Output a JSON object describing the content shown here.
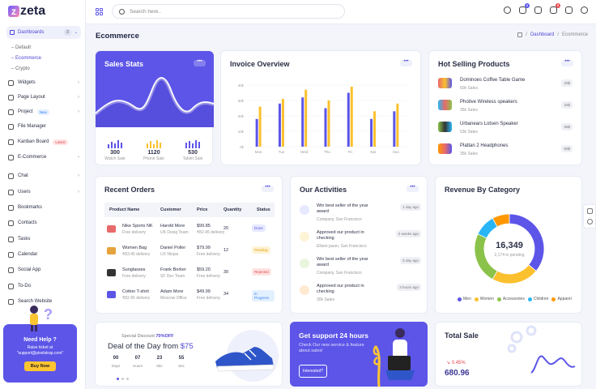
{
  "app": {
    "logo": "zeta"
  },
  "sidebar": {
    "dashboards_label": "Dashboards",
    "dashboards_count": "3",
    "sub_items": [
      "Default",
      "Ecommerce",
      "Crypto"
    ],
    "items": [
      {
        "label": "Widgets"
      },
      {
        "label": "Page Layout"
      },
      {
        "label": "Project",
        "tag": "New"
      },
      {
        "label": "File Manager"
      },
      {
        "label": "Kanban Board",
        "tag": "Latest"
      },
      {
        "label": "E-Commerce"
      },
      {
        "label": "Chat"
      },
      {
        "label": "Users"
      },
      {
        "label": "Bookmarks"
      },
      {
        "label": "Contacts"
      },
      {
        "label": "Tasks"
      },
      {
        "label": "Calendar"
      },
      {
        "label": "Social App"
      },
      {
        "label": "To-Do"
      },
      {
        "label": "Search Website"
      }
    ],
    "help": {
      "title": "Need Help ?",
      "line1": "Raise ticket at",
      "line2": "\"support@pixelstrap.com\"",
      "button": "Buy Now"
    }
  },
  "topbar": {
    "search_placeholder": "Search here..",
    "notif_counts": [
      "2",
      "5"
    ]
  },
  "page": {
    "title": "Ecommerce",
    "breadcrumb": [
      "Dashboard",
      "Ecommerce"
    ]
  },
  "sales_stats": {
    "title": "Sales Stats",
    "stats": [
      {
        "value": "300",
        "label": "Watch Sale"
      },
      {
        "value": "1120",
        "label": "Phone Sale"
      },
      {
        "value": "530",
        "label": "Tablet Sale"
      }
    ]
  },
  "chart_data": {
    "type": "bar",
    "title": "Invoice Overview",
    "categories": [
      "Mon",
      "Tue",
      "Wed",
      "Thu",
      "Fri",
      "Sat",
      "Sun"
    ],
    "yticks": [
      "0k",
      "10k",
      "20k",
      "30k",
      "40k"
    ],
    "ylim": [
      0,
      40
    ],
    "series": [
      {
        "name": "Series 1",
        "color": "#5c55e8",
        "values": [
          18,
          28,
          32,
          25,
          35,
          18,
          23
        ]
      },
      {
        "name": "Series 2",
        "color": "#fbc02d",
        "values": [
          26,
          31,
          37,
          30,
          39,
          23,
          28
        ]
      }
    ]
  },
  "hot_selling": {
    "title": "Hot Selling Products",
    "items": [
      {
        "name": "Dominoes Coffee Table Game",
        "sales": "60k Sales",
        "price": "20$"
      },
      {
        "name": "Photive Wireless speakers",
        "sales": "35k Sales",
        "price": "32$"
      },
      {
        "name": "Urbanears Lotsen Speaker",
        "sales": "53k Sales",
        "price": "56$"
      },
      {
        "name": "Plattan 2 Headphones",
        "sales": "35k Sales",
        "price": "60$"
      }
    ]
  },
  "orders": {
    "title": "Recent Orders",
    "headers": [
      "Product Name",
      "Customer",
      "Price",
      "Quantity",
      "Status"
    ],
    "rows": [
      {
        "product": "Nike Sports NK",
        "product_sub": "Free delivery",
        "customer": "Harold More",
        "customer_sub": "UK Desig Team",
        "price": "$99.85",
        "price_sub": "₹82.45 delivery",
        "qty": "20",
        "status": "Done",
        "status_bg": "#e6e9ff",
        "status_fg": "#5c55e8",
        "color": "#e86a6a"
      },
      {
        "product": "Women Bag",
        "product_sub": "₹83.45 delivery",
        "customer": "Daniel Poller",
        "customer_sub": "UX Ninjas",
        "price": "$79.99",
        "price_sub": "Free delivery",
        "qty": "12",
        "status": "Pending",
        "status_bg": "#fff3d6",
        "status_fg": "#e0a000",
        "color": "#e6a23c"
      },
      {
        "product": "Sunglasses",
        "product_sub": "Free delivery",
        "customer": "Frank Borker",
        "customer_sub": "SF Dev Team",
        "price": "$59.20",
        "price_sub": "Free delivery",
        "qty": "30",
        "status": "Rejected",
        "status_bg": "#ffe3e3",
        "status_fg": "#e5484d",
        "color": "#333"
      },
      {
        "product": "Cotton T-shirt",
        "product_sub": "₹82.45 delivery",
        "customer": "Adam More",
        "customer_sub": "Moscow Office",
        "price": "$49.99",
        "price_sub": "Free delivery",
        "qty": "34",
        "status": "In Progress",
        "status_bg": "#e3f0ff",
        "status_fg": "#3b82f6",
        "color": "#5c55e8"
      }
    ]
  },
  "activities": {
    "title": "Our Activities",
    "items": [
      {
        "title": "Win best seller of the year award",
        "sub": "Company, San Francisco",
        "time": "1 day ago",
        "color": "#5c55e8"
      },
      {
        "title": "Approved our product in checking",
        "sub": "Ellsee jason, San Francisco",
        "time": "2 weeks ago",
        "color": "#fbc02d"
      },
      {
        "title": "Win best seller of the year award",
        "sub": "Company, San Francisco",
        "time": "5 day ago",
        "color": "#8bc34a"
      },
      {
        "title": "Approved our product in checking",
        "sub": "30k Sales",
        "time": "3 hours ago",
        "color": "#ff9800"
      }
    ]
  },
  "revenue": {
    "title": "Revenue By Category",
    "center_value": "16,349",
    "center_label": "2,174 in pending",
    "categories": [
      {
        "label": "Men",
        "value": 36,
        "color": "#5c55e8"
      },
      {
        "label": "Women",
        "value": 22,
        "color": "#fbc02d"
      },
      {
        "label": "Accessories",
        "value": 24,
        "color": "#8bc34a"
      },
      {
        "label": "Children",
        "value": 10,
        "color": "#29b6f6"
      },
      {
        "label": "Apparel",
        "value": 8,
        "color": "#ff9800"
      }
    ]
  },
  "deal": {
    "special_label": "Special Discount",
    "special_pct": "70%OFF",
    "title_prefix": "Deal of the Day from ",
    "price": "$75",
    "countdown": [
      {
        "value": "00",
        "label": "Days"
      },
      {
        "value": "07",
        "label": "Hours"
      },
      {
        "value": "23",
        "label": "Min"
      },
      {
        "value": "55",
        "label": "Sec"
      }
    ]
  },
  "support": {
    "title": "Get support 24 hours",
    "text": "Check Our new service & feature about sales!",
    "button": "Interested?"
  },
  "total_sale": {
    "title": "Total Sale",
    "change": "0.45%",
    "value": "680.96"
  }
}
